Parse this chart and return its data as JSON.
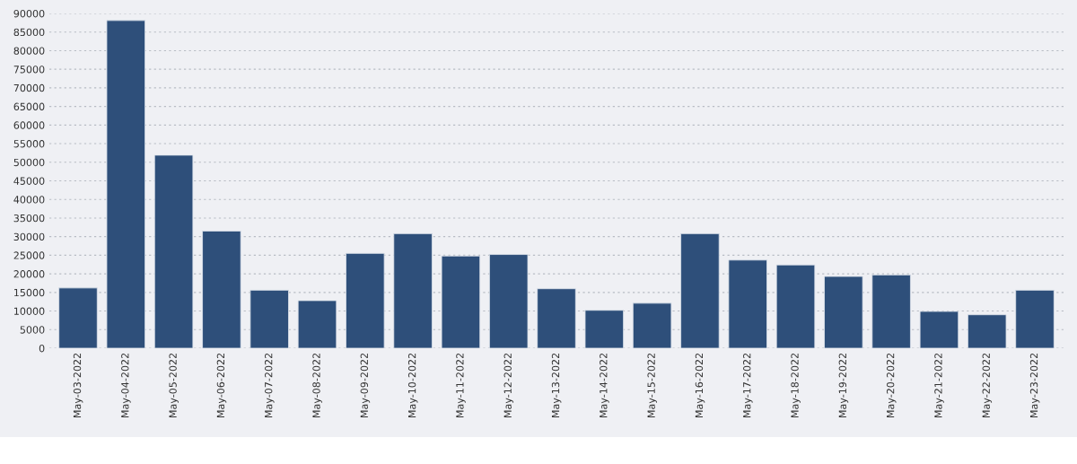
{
  "chart_data": {
    "type": "bar",
    "categories": [
      "May-03-2022",
      "May-04-2022",
      "May-05-2022",
      "May-06-2022",
      "May-07-2022",
      "May-08-2022",
      "May-09-2022",
      "May-10-2022",
      "May-11-2022",
      "May-12-2022",
      "May-13-2022",
      "May-14-2022",
      "May-15-2022",
      "May-16-2022",
      "May-17-2022",
      "May-18-2022",
      "May-19-2022",
      "May-20-2022",
      "May-21-2022",
      "May-22-2022",
      "May-23-2022"
    ],
    "values": [
      16200,
      88100,
      51900,
      31500,
      15600,
      12800,
      25500,
      30800,
      24800,
      25200,
      16000,
      10200,
      12100,
      30800,
      23700,
      22400,
      19300,
      19700,
      9900,
      9000,
      15600
    ],
    "color": "#2e4f7a",
    "ylim": [
      0,
      90000
    ],
    "yticks": [
      0,
      5000,
      10000,
      15000,
      20000,
      25000,
      30000,
      35000,
      40000,
      45000,
      50000,
      55000,
      60000,
      65000,
      70000,
      75000,
      80000,
      85000,
      90000
    ],
    "grid": "y"
  }
}
